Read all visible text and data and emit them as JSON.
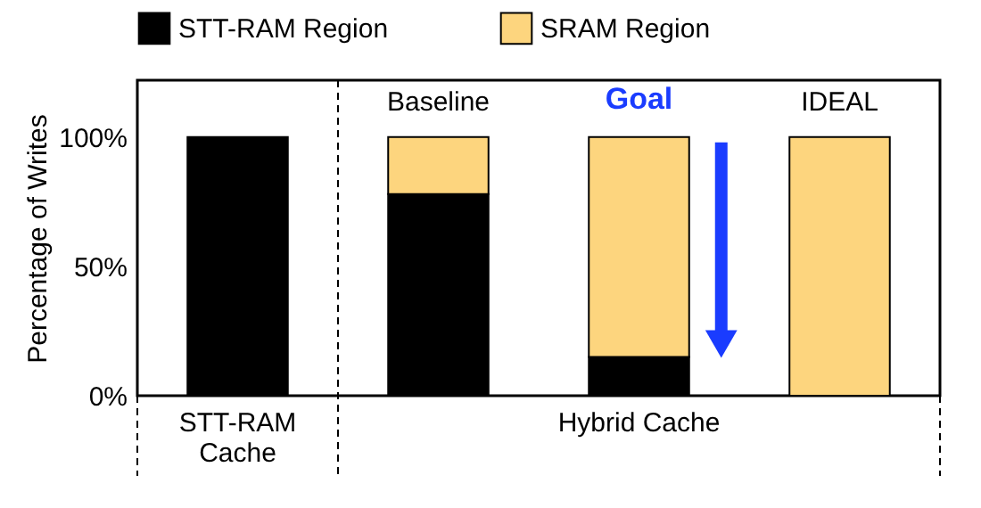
{
  "chart_data": {
    "type": "bar",
    "stacked": true,
    "ylabel": "Percentage of Writes",
    "categories": [
      null,
      "Baseline",
      null,
      "IDEAL"
    ],
    "series": [
      {
        "name": "STT-RAM Region",
        "color": "#000000",
        "values": [
          100,
          78,
          15,
          0
        ]
      },
      {
        "name": "SRAM Region",
        "color": "#fdd57e",
        "values": [
          0,
          22,
          85,
          100
        ]
      }
    ],
    "ylim": [
      0,
      122
    ],
    "yticks": [
      {
        "value": 0,
        "label": "0%"
      },
      {
        "value": 50,
        "label": "50%"
      },
      {
        "value": 100,
        "label": "100%"
      }
    ],
    "grid": false,
    "legend": "top",
    "annotations": [
      "Goal",
      "STT-RAM Cache",
      "Hybrid Cache"
    ]
  }
}
